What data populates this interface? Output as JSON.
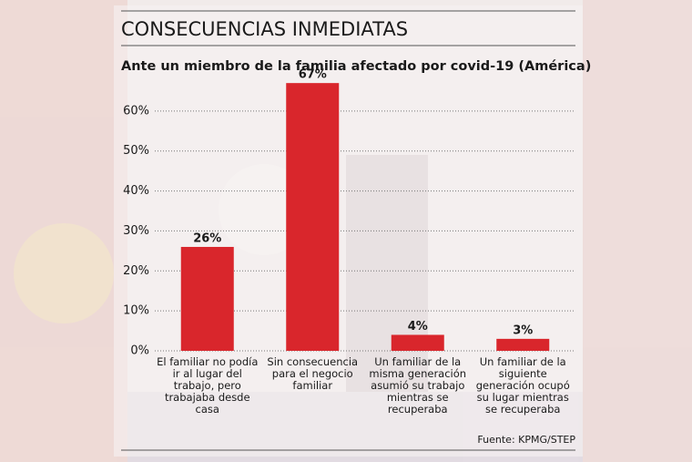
{
  "chart_data": {
    "type": "bar",
    "title": "CONSECUENCIAS INMEDIATAS",
    "subtitle": "Ante un miembro de la familia afectado por covid-19 (América)",
    "source": "Fuente: KPMG/STEP",
    "categories": [
      "El familiar no podía ir al lugar del trabajo, pero trabajaba desde casa",
      "Sin consecuencia para el negocio familiar",
      "Un familiar de la misma generación asumió su trabajo mientras se recuperaba",
      "Un familiar de la siguiente generación ocupó su lugar mientras se recuperaba"
    ],
    "values": [
      26,
      67,
      4,
      3
    ],
    "value_labels": [
      "26%",
      "67%",
      "4%",
      "3%"
    ],
    "color": "#d9262c",
    "ylim": [
      0,
      70
    ],
    "yticks": [
      {
        "value": 0,
        "label": "0%"
      },
      {
        "value": 10,
        "label": "10%"
      },
      {
        "value": 20,
        "label": "20%"
      },
      {
        "value": 30,
        "label": "30%"
      },
      {
        "value": 40,
        "label": "40%"
      },
      {
        "value": 50,
        "label": "50%"
      },
      {
        "value": 60,
        "label": "60%"
      }
    ],
    "grid": true
  }
}
